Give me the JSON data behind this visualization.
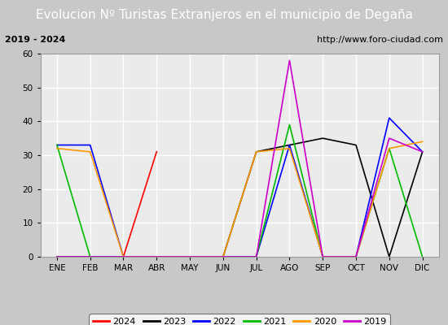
{
  "title": "Evolucion Nº Turistas Extranjeros en el municipio de Degaña",
  "subtitle_left": "2019 - 2024",
  "subtitle_right": "http://www.foro-ciudad.com",
  "months": [
    "ENE",
    "FEB",
    "MAR",
    "ABR",
    "MAY",
    "JUN",
    "JUL",
    "AGO",
    "SEP",
    "OCT",
    "NOV",
    "DIC"
  ],
  "ylim": [
    0,
    60
  ],
  "yticks": [
    0,
    10,
    20,
    30,
    40,
    50,
    60
  ],
  "series": {
    "2024": {
      "color": "#ff0000",
      "data": [
        0,
        0,
        0,
        31,
        null,
        null,
        null,
        null,
        null,
        null,
        null,
        null
      ]
    },
    "2023": {
      "color": "#000000",
      "data": [
        0,
        0,
        0,
        0,
        0,
        0,
        31,
        33,
        35,
        33,
        0,
        31
      ]
    },
    "2022": {
      "color": "#0000ff",
      "data": [
        33,
        33,
        0,
        0,
        0,
        0,
        0,
        33,
        0,
        0,
        41,
        31
      ]
    },
    "2021": {
      "color": "#00bb00",
      "data": [
        33,
        0,
        0,
        0,
        0,
        0,
        0,
        39,
        0,
        0,
        32,
        0
      ]
    },
    "2020": {
      "color": "#ff9900",
      "data": [
        32,
        31,
        0,
        0,
        0,
        0,
        31,
        32,
        0,
        0,
        32,
        34
      ]
    },
    "2019": {
      "color": "#cc00cc",
      "data": [
        0,
        0,
        0,
        0,
        0,
        0,
        0,
        58,
        0,
        0,
        35,
        31
      ]
    }
  },
  "title_bg_color": "#4472c4",
  "title_text_color": "#ffffff",
  "subtitle_bg_color": "#e0e0e0",
  "plot_bg_color": "#ebebeb",
  "outer_bg_color": "#c8c8c8",
  "grid_color": "#ffffff",
  "title_fontsize": 11,
  "subtitle_fontsize": 8,
  "axis_label_fontsize": 7.5,
  "legend_fontsize": 8
}
